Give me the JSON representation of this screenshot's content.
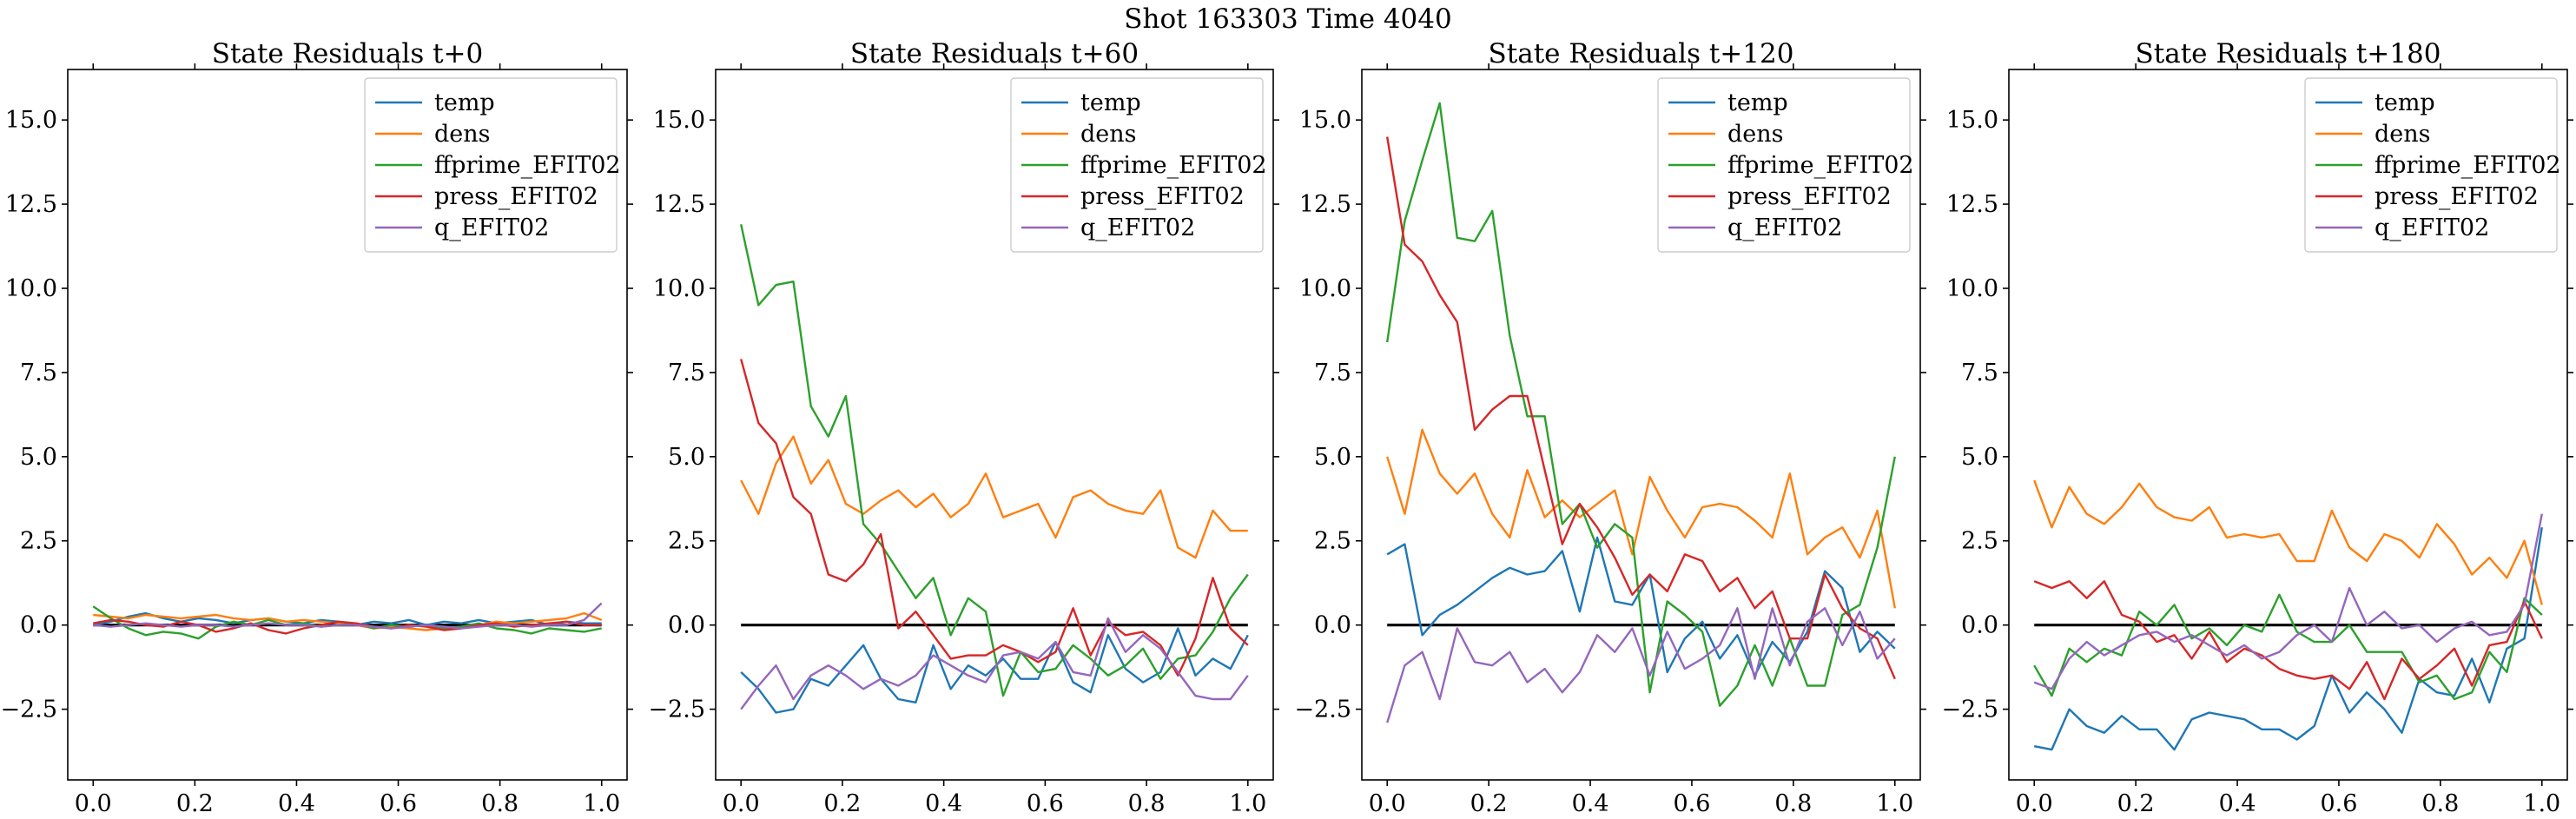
{
  "figure": {
    "title": "Shot 163303   Time 4040"
  },
  "chart_data": [
    {
      "type": "line",
      "title": "State Residuals t+0",
      "xlim": [
        -0.05,
        1.05
      ],
      "ylim": [
        -4.6,
        16.5
      ],
      "xticks": [
        "0.0",
        "0.2",
        "0.4",
        "0.6",
        "0.8",
        "1.0"
      ],
      "yticks": [
        "-2.5",
        "0.0",
        "2.5",
        "5.0",
        "7.5",
        "10.0",
        "12.5",
        "15.0"
      ],
      "legend_position": "upper-right",
      "zero_line": true,
      "x": [
        0.0,
        0.0345,
        0.069,
        0.1034,
        0.1379,
        0.1724,
        0.2069,
        0.2414,
        0.2759,
        0.3103,
        0.3448,
        0.3793,
        0.4138,
        0.4483,
        0.4828,
        0.5172,
        0.5517,
        0.5862,
        0.6207,
        0.6552,
        0.6897,
        0.7241,
        0.7586,
        0.7931,
        0.8276,
        0.8621,
        0.8966,
        0.931,
        0.9655,
        1.0
      ],
      "series": [
        {
          "name": "temp",
          "color": "#1f77b4",
          "values": [
            0.0,
            0.1,
            0.25,
            0.35,
            0.2,
            0.1,
            0.2,
            0.15,
            0.05,
            0.15,
            0.2,
            0.1,
            0.05,
            0.15,
            0.1,
            0.0,
            0.1,
            0.05,
            0.15,
            0.0,
            0.1,
            0.05,
            0.15,
            0.05,
            0.1,
            0.15,
            0.0,
            0.1,
            0.05,
            0.05
          ]
        },
        {
          "name": "dens",
          "color": "#ff7f0e",
          "values": [
            0.3,
            0.25,
            0.2,
            0.3,
            0.25,
            0.2,
            0.25,
            0.3,
            0.2,
            0.15,
            0.2,
            0.1,
            0.15,
            0.1,
            0.05,
            0.0,
            -0.1,
            -0.05,
            -0.1,
            -0.15,
            -0.1,
            -0.05,
            0.0,
            0.1,
            0.05,
            0.1,
            0.15,
            0.2,
            0.35,
            0.15
          ]
        },
        {
          "name": "ffprime_EFIT02",
          "color": "#2ca02c",
          "values": [
            0.55,
            0.2,
            -0.1,
            -0.3,
            -0.2,
            -0.25,
            -0.4,
            -0.05,
            0.1,
            0.0,
            0.15,
            0.0,
            0.05,
            -0.05,
            0.0,
            0.05,
            -0.1,
            0.0,
            -0.05,
            0.0,
            -0.1,
            -0.05,
            0.05,
            -0.1,
            -0.15,
            -0.25,
            -0.1,
            -0.15,
            -0.2,
            -0.1
          ]
        },
        {
          "name": "press_EFIT02",
          "color": "#d62728",
          "values": [
            0.05,
            0.15,
            0.1,
            0.0,
            -0.05,
            0.1,
            0.0,
            -0.2,
            -0.1,
            0.05,
            -0.15,
            -0.25,
            -0.1,
            0.0,
            0.1,
            0.05,
            -0.05,
            -0.1,
            0.0,
            -0.05,
            -0.15,
            -0.1,
            0.0,
            0.05,
            -0.05,
            0.0,
            0.05,
            0.1,
            0.0,
            0.0
          ]
        },
        {
          "name": "q_EFIT02",
          "color": "#9467bd",
          "values": [
            0.0,
            -0.05,
            0.0,
            0.05,
            0.0,
            -0.05,
            0.0,
            0.0,
            -0.05,
            0.0,
            0.05,
            0.0,
            0.0,
            -0.05,
            0.0,
            0.0,
            -0.05,
            -0.1,
            -0.05,
            0.0,
            -0.05,
            -0.1,
            -0.05,
            0.0,
            0.0,
            -0.05,
            0.0,
            0.0,
            0.15,
            0.65
          ]
        }
      ]
    },
    {
      "type": "line",
      "title": "State Residuals t+60",
      "xlim": [
        -0.05,
        1.05
      ],
      "ylim": [
        -4.6,
        16.5
      ],
      "xticks": [
        "0.0",
        "0.2",
        "0.4",
        "0.6",
        "0.8",
        "1.0"
      ],
      "yticks": [
        "-2.5",
        "0.0",
        "2.5",
        "5.0",
        "7.5",
        "10.0",
        "12.5",
        "15.0"
      ],
      "legend_position": "upper-right",
      "zero_line": true,
      "x": [
        0.0,
        0.0345,
        0.069,
        0.1034,
        0.1379,
        0.1724,
        0.2069,
        0.2414,
        0.2759,
        0.3103,
        0.3448,
        0.3793,
        0.4138,
        0.4483,
        0.4828,
        0.5172,
        0.5517,
        0.5862,
        0.6207,
        0.6552,
        0.6897,
        0.7241,
        0.7586,
        0.7931,
        0.8276,
        0.8621,
        0.8966,
        0.931,
        0.9655,
        1.0
      ],
      "series": [
        {
          "name": "temp",
          "color": "#1f77b4",
          "values": [
            -1.4,
            -1.9,
            -2.6,
            -2.5,
            -1.6,
            -1.8,
            -1.2,
            -0.6,
            -1.6,
            -2.2,
            -2.3,
            -0.6,
            -1.9,
            -1.2,
            -1.5,
            -1.0,
            -1.6,
            -1.6,
            -0.5,
            -1.7,
            -2.0,
            -0.3,
            -1.3,
            -1.7,
            -1.4,
            -0.1,
            -1.5,
            -1.0,
            -1.3,
            -0.3
          ]
        },
        {
          "name": "dens",
          "color": "#ff7f0e",
          "values": [
            4.3,
            3.3,
            4.8,
            5.6,
            4.2,
            4.9,
            3.6,
            3.3,
            3.7,
            4.0,
            3.5,
            3.9,
            3.2,
            3.6,
            4.5,
            3.2,
            3.4,
            3.6,
            2.6,
            3.8,
            4.0,
            3.6,
            3.4,
            3.3,
            4.0,
            2.3,
            2.0,
            3.4,
            2.8,
            2.8
          ]
        },
        {
          "name": "ffprime_EFIT02",
          "color": "#2ca02c",
          "values": [
            11.9,
            9.5,
            10.1,
            10.2,
            6.5,
            5.6,
            6.8,
            3.0,
            2.4,
            1.6,
            0.8,
            1.4,
            -0.3,
            0.8,
            0.4,
            -2.1,
            -0.8,
            -1.4,
            -1.3,
            -0.6,
            -1.0,
            -1.5,
            -1.2,
            -0.7,
            -1.6,
            -1.0,
            -0.9,
            -0.2,
            0.8,
            1.5
          ]
        },
        {
          "name": "press_EFIT02",
          "color": "#d62728",
          "values": [
            7.9,
            6.0,
            5.4,
            3.8,
            3.3,
            1.5,
            1.3,
            1.8,
            2.7,
            -0.1,
            0.4,
            -0.3,
            -1.0,
            -0.9,
            -0.9,
            -0.6,
            -0.8,
            -1.1,
            -0.8,
            0.5,
            -0.9,
            0.1,
            -0.3,
            -0.2,
            -0.6,
            -1.5,
            -0.4,
            1.4,
            -0.1,
            -0.6
          ]
        },
        {
          "name": "q_EFIT02",
          "color": "#9467bd",
          "values": [
            -2.5,
            -1.8,
            -1.2,
            -2.2,
            -1.5,
            -1.2,
            -1.5,
            -1.9,
            -1.6,
            -1.8,
            -1.5,
            -0.9,
            -1.2,
            -1.5,
            -1.7,
            -0.9,
            -0.8,
            -1.0,
            -0.5,
            -1.4,
            -1.5,
            0.2,
            -0.8,
            -0.3,
            -0.7,
            -1.4,
            -2.1,
            -2.2,
            -2.2,
            -1.5
          ]
        }
      ]
    },
    {
      "type": "line",
      "title": "State Residuals t+120",
      "xlim": [
        -0.05,
        1.05
      ],
      "ylim": [
        -4.6,
        16.5
      ],
      "xticks": [
        "0.0",
        "0.2",
        "0.4",
        "0.6",
        "0.8",
        "1.0"
      ],
      "yticks": [
        "-2.5",
        "0.0",
        "2.5",
        "5.0",
        "7.5",
        "10.0",
        "12.5",
        "15.0"
      ],
      "legend_position": "upper-right",
      "zero_line": true,
      "x": [
        0.0,
        0.0345,
        0.069,
        0.1034,
        0.1379,
        0.1724,
        0.2069,
        0.2414,
        0.2759,
        0.3103,
        0.3448,
        0.3793,
        0.4138,
        0.4483,
        0.4828,
        0.5172,
        0.5517,
        0.5862,
        0.6207,
        0.6552,
        0.6897,
        0.7241,
        0.7586,
        0.7931,
        0.8276,
        0.8621,
        0.8966,
        0.931,
        0.9655,
        1.0
      ],
      "series": [
        {
          "name": "temp",
          "color": "#1f77b4",
          "values": [
            2.1,
            2.4,
            -0.3,
            0.3,
            0.6,
            1.0,
            1.4,
            1.7,
            1.5,
            1.6,
            2.2,
            0.4,
            2.6,
            0.7,
            0.6,
            1.5,
            -1.4,
            -0.4,
            0.1,
            -1.0,
            -0.3,
            -1.5,
            -0.5,
            -1.1,
            -0.2,
            1.6,
            1.1,
            -0.8,
            -0.2,
            -0.7
          ]
        },
        {
          "name": "dens",
          "color": "#ff7f0e",
          "values": [
            5.0,
            3.3,
            5.8,
            4.5,
            3.9,
            4.5,
            3.3,
            2.6,
            4.6,
            3.2,
            3.7,
            3.2,
            3.6,
            4.0,
            2.1,
            4.4,
            3.4,
            2.6,
            3.5,
            3.6,
            3.5,
            3.1,
            2.6,
            4.5,
            2.1,
            2.6,
            2.9,
            2.0,
            3.4,
            0.5
          ]
        },
        {
          "name": "ffprime_EFIT02",
          "color": "#2ca02c",
          "values": [
            8.4,
            12.0,
            13.8,
            15.5,
            11.5,
            11.4,
            12.3,
            8.6,
            6.2,
            6.2,
            3.0,
            3.6,
            2.3,
            3.0,
            2.6,
            -2.0,
            0.7,
            0.3,
            -0.2,
            -2.4,
            -1.8,
            -0.6,
            -1.8,
            -0.4,
            -1.8,
            -1.8,
            0.3,
            0.6,
            2.3,
            5.0
          ]
        },
        {
          "name": "press_EFIT02",
          "color": "#d62728",
          "values": [
            14.5,
            11.3,
            10.8,
            9.8,
            9.0,
            5.8,
            6.4,
            6.8,
            6.8,
            4.6,
            2.4,
            3.6,
            2.9,
            2.0,
            0.9,
            1.5,
            1.0,
            2.1,
            1.9,
            1.0,
            1.4,
            0.5,
            1.0,
            -0.4,
            -0.4,
            1.5,
            0.5,
            -0.1,
            -0.4,
            -1.6
          ]
        },
        {
          "name": "q_EFIT02",
          "color": "#9467bd",
          "values": [
            -2.9,
            -1.2,
            -0.8,
            -2.2,
            -0.1,
            -1.1,
            -1.2,
            -0.8,
            -1.7,
            -1.3,
            -2.0,
            -1.4,
            -0.3,
            -0.8,
            -0.1,
            -1.5,
            -0.2,
            -1.3,
            -1.0,
            -0.6,
            0.5,
            -1.6,
            0.5,
            -1.2,
            0.1,
            0.5,
            -0.6,
            0.4,
            -1.0,
            -0.4
          ]
        }
      ]
    },
    {
      "type": "line",
      "title": "State Residuals t+180",
      "xlim": [
        -0.05,
        1.05
      ],
      "ylim": [
        -4.6,
        16.5
      ],
      "xticks": [
        "0.0",
        "0.2",
        "0.4",
        "0.6",
        "0.8",
        "1.0"
      ],
      "yticks": [
        "-2.5",
        "0.0",
        "2.5",
        "5.0",
        "7.5",
        "10.0",
        "12.5",
        "15.0"
      ],
      "legend_position": "upper-right",
      "zero_line": true,
      "x": [
        0.0,
        0.0345,
        0.069,
        0.1034,
        0.1379,
        0.1724,
        0.2069,
        0.2414,
        0.2759,
        0.3103,
        0.3448,
        0.3793,
        0.4138,
        0.4483,
        0.4828,
        0.5172,
        0.5517,
        0.5862,
        0.6207,
        0.6552,
        0.6897,
        0.7241,
        0.7586,
        0.7931,
        0.8276,
        0.8621,
        0.8966,
        0.931,
        0.9655,
        1.0
      ],
      "series": [
        {
          "name": "temp",
          "color": "#1f77b4",
          "values": [
            -3.6,
            -3.7,
            -2.5,
            -3.0,
            -3.2,
            -2.7,
            -3.1,
            -3.1,
            -3.7,
            -2.8,
            -2.6,
            -2.7,
            -2.8,
            -3.1,
            -3.1,
            -3.4,
            -3.0,
            -1.5,
            -2.6,
            -2.0,
            -2.5,
            -3.2,
            -1.6,
            -2.0,
            -2.1,
            -1.0,
            -2.3,
            -0.7,
            -0.4,
            2.9
          ]
        },
        {
          "name": "dens",
          "color": "#ff7f0e",
          "values": [
            4.3,
            2.9,
            4.1,
            3.3,
            3.0,
            3.5,
            4.2,
            3.5,
            3.2,
            3.1,
            3.5,
            2.6,
            2.7,
            2.6,
            2.7,
            1.9,
            1.9,
            3.4,
            2.3,
            1.9,
            2.7,
            2.5,
            2.0,
            3.0,
            2.4,
            1.5,
            2.0,
            1.4,
            2.5,
            0.6
          ]
        },
        {
          "name": "ffprime_EFIT02",
          "color": "#2ca02c",
          "values": [
            -1.2,
            -2.1,
            -0.7,
            -1.1,
            -0.7,
            -0.9,
            0.4,
            0.0,
            0.6,
            -0.4,
            -0.1,
            -0.6,
            0.0,
            -0.2,
            0.9,
            -0.2,
            -0.5,
            -0.5,
            0.0,
            -0.8,
            -0.8,
            -0.8,
            -1.7,
            -1.5,
            -2.2,
            -2.0,
            -0.8,
            -1.4,
            0.8,
            0.3
          ]
        },
        {
          "name": "press_EFIT02",
          "color": "#d62728",
          "values": [
            1.3,
            1.1,
            1.3,
            0.8,
            1.3,
            0.3,
            0.1,
            -0.5,
            -0.3,
            -1.0,
            -0.2,
            -1.1,
            -0.7,
            -0.9,
            -1.3,
            -1.5,
            -1.6,
            -1.5,
            -1.9,
            -1.1,
            -2.2,
            -1.0,
            -1.6,
            -1.2,
            -0.7,
            -1.8,
            -0.6,
            -0.5,
            0.7,
            -0.4
          ]
        },
        {
          "name": "q_EFIT02",
          "color": "#9467bd",
          "values": [
            -1.7,
            -1.9,
            -1.0,
            -0.5,
            -0.9,
            -0.6,
            -0.3,
            -0.2,
            -0.5,
            -0.3,
            -0.6,
            -0.9,
            -0.6,
            -1.0,
            -0.8,
            -0.3,
            0.0,
            -0.5,
            1.1,
            0.0,
            0.4,
            -0.1,
            0.0,
            -0.5,
            -0.1,
            0.1,
            -0.3,
            -0.2,
            0.6,
            3.3
          ]
        }
      ]
    }
  ]
}
